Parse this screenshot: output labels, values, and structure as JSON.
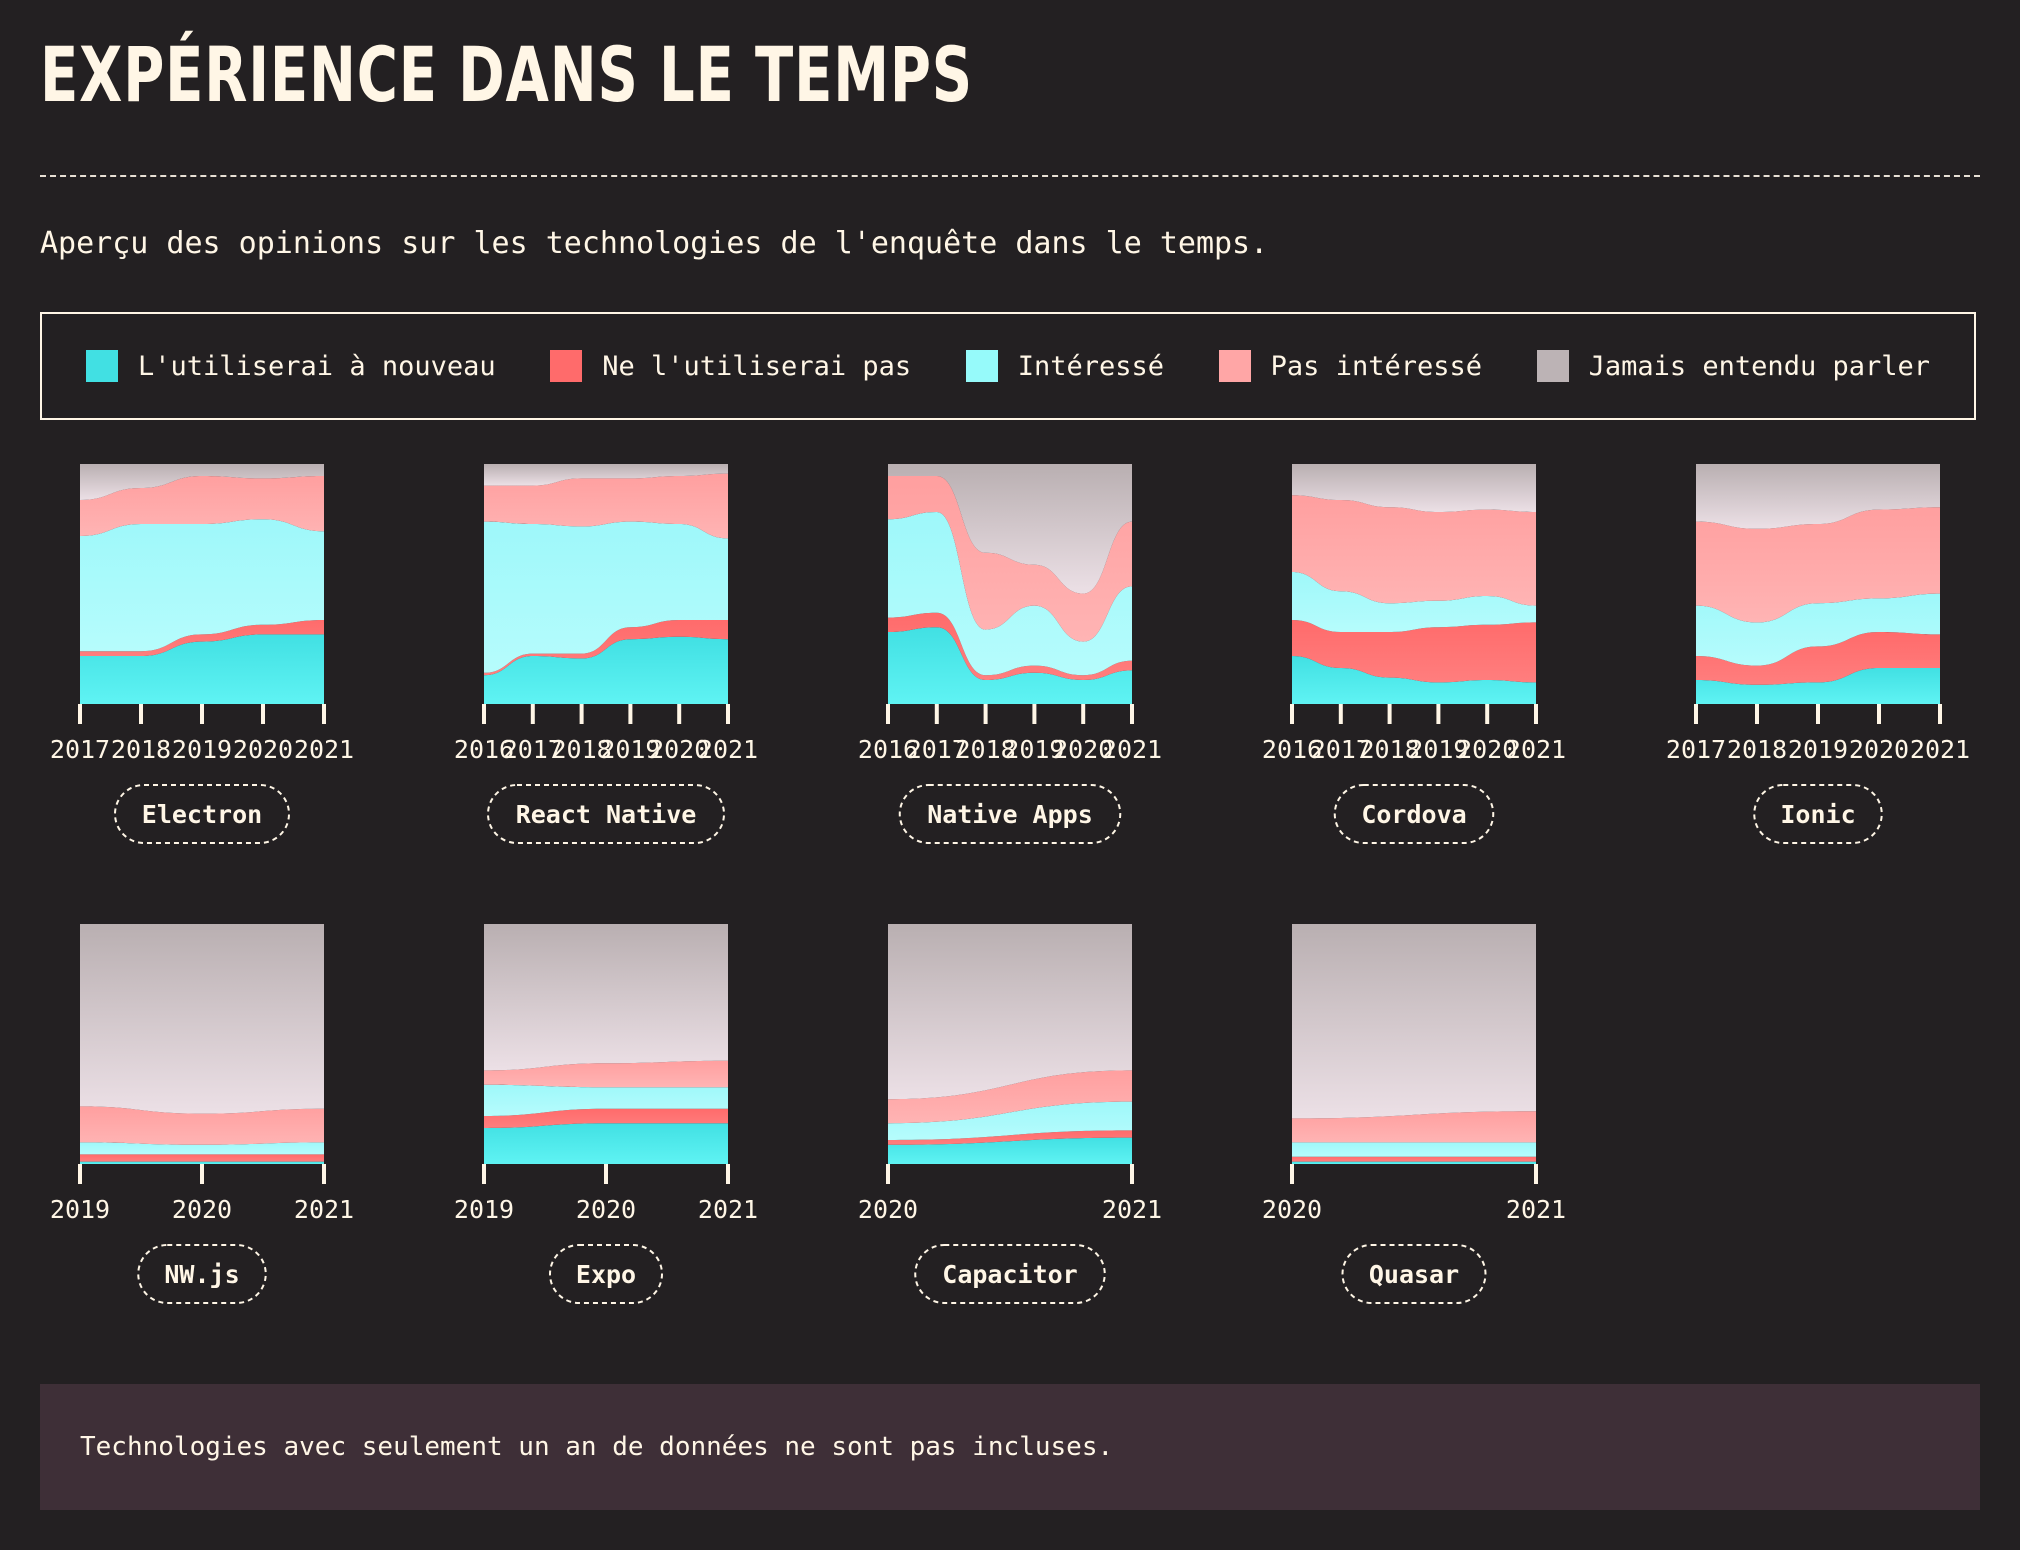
{
  "header": {
    "title": "EXPÉRIENCE DANS LE TEMPS",
    "description": "Aperçu des opinions sur les technologies de l'enquête dans le temps."
  },
  "legend": {
    "items": [
      {
        "key": "would_use",
        "label": "L'utiliserai à nouveau",
        "color": "#41e0e3"
      },
      {
        "key": "would_not_use",
        "label": "Ne l'utiliserai pas",
        "color": "#ff6b6b"
      },
      {
        "key": "interested",
        "label": "Intéressé",
        "color": "#96fafa"
      },
      {
        "key": "not_interested",
        "label": "Pas intéressé",
        "color": "#ffa6a6"
      },
      {
        "key": "never_heard",
        "label": "Jamais entendu parler",
        "color": "#bcb3b5"
      }
    ]
  },
  "chart_data": {
    "type": "area",
    "stacking": "percent",
    "series_order": [
      "would_use",
      "would_not_use",
      "interested",
      "not_interested",
      "never_heard"
    ],
    "ylim": [
      0,
      100
    ],
    "charts": [
      {
        "name": "Electron",
        "x": [
          "2017",
          "2018",
          "2019",
          "2020",
          "2021"
        ],
        "values": {
          "would_use": [
            20,
            20,
            26,
            29,
            29
          ],
          "would_not_use": [
            2,
            2,
            3,
            4,
            6
          ],
          "interested": [
            48,
            53,
            46,
            44,
            37
          ],
          "not_interested": [
            15,
            15,
            20,
            17,
            23
          ],
          "never_heard": [
            15,
            10,
            5,
            6,
            5
          ]
        }
      },
      {
        "name": "React Native",
        "x": [
          "2016",
          "2017",
          "2018",
          "2019",
          "2020",
          "2021"
        ],
        "values": {
          "would_use": [
            12,
            20,
            19,
            27,
            28,
            27
          ],
          "would_not_use": [
            1,
            1,
            2,
            5,
            7,
            8
          ],
          "interested": [
            63,
            54,
            53,
            44,
            40,
            34
          ],
          "not_interested": [
            15,
            16,
            20,
            18,
            20,
            27
          ],
          "never_heard": [
            9,
            9,
            6,
            6,
            5,
            4
          ]
        }
      },
      {
        "name": "Native Apps",
        "x": [
          "2016",
          "2017",
          "2018",
          "2019",
          "2020",
          "2021"
        ],
        "values": {
          "would_use": [
            30,
            32,
            10,
            13,
            10,
            14
          ],
          "would_not_use": [
            6,
            6,
            2,
            3,
            2,
            4
          ],
          "interested": [
            41,
            42,
            19,
            25,
            14,
            31
          ],
          "not_interested": [
            18,
            15,
            32,
            17,
            20,
            27
          ],
          "never_heard": [
            5,
            5,
            37,
            42,
            54,
            24
          ]
        }
      },
      {
        "name": "Cordova",
        "x": [
          "2016",
          "2017",
          "2018",
          "2019",
          "2020",
          "2021"
        ],
        "values": {
          "would_use": [
            20,
            15,
            11,
            9,
            10,
            9
          ],
          "would_not_use": [
            15,
            15,
            19,
            23,
            23,
            25
          ],
          "interested": [
            20,
            17,
            12,
            11,
            12,
            7
          ],
          "not_interested": [
            32,
            38,
            40,
            37,
            36,
            39
          ],
          "never_heard": [
            13,
            15,
            18,
            20,
            19,
            20
          ]
        }
      },
      {
        "name": "Ionic",
        "x": [
          "2017",
          "2018",
          "2019",
          "2020",
          "2021"
        ],
        "values": {
          "would_use": [
            10,
            8,
            9,
            15,
            15
          ],
          "would_not_use": [
            10,
            8,
            15,
            15,
            14
          ],
          "interested": [
            21,
            18,
            18,
            14,
            17
          ],
          "not_interested": [
            35,
            39,
            33,
            37,
            36
          ],
          "never_heard": [
            24,
            27,
            25,
            19,
            18
          ]
        }
      },
      {
        "name": "NW.js",
        "x": [
          "2019",
          "2020",
          "2021"
        ],
        "values": {
          "would_use": [
            1,
            1,
            1
          ],
          "would_not_use": [
            3,
            3,
            3
          ],
          "interested": [
            5,
            4,
            5
          ],
          "not_interested": [
            15,
            13,
            14
          ],
          "never_heard": [
            76,
            79,
            77
          ]
        }
      },
      {
        "name": "Expo",
        "x": [
          "2019",
          "2020",
          "2021"
        ],
        "values": {
          "would_use": [
            15,
            17,
            17
          ],
          "would_not_use": [
            5,
            6,
            6
          ],
          "interested": [
            13,
            9,
            9
          ],
          "not_interested": [
            6,
            10,
            11
          ],
          "never_heard": [
            61,
            58,
            57
          ]
        }
      },
      {
        "name": "Capacitor",
        "x": [
          "2020",
          "2021"
        ],
        "values": {
          "would_use": [
            8,
            11
          ],
          "would_not_use": [
            2,
            3
          ],
          "interested": [
            7,
            12
          ],
          "not_interested": [
            10,
            13
          ],
          "never_heard": [
            73,
            61
          ]
        }
      },
      {
        "name": "Quasar",
        "x": [
          "2020",
          "2021"
        ],
        "values": {
          "would_use": [
            1,
            1
          ],
          "would_not_use": [
            2,
            2
          ],
          "interested": [
            6,
            6
          ],
          "not_interested": [
            10,
            13
          ],
          "never_heard": [
            81,
            78
          ]
        }
      }
    ]
  },
  "footnote": "Technologies avec seulement un an de données ne sont pas incluses."
}
